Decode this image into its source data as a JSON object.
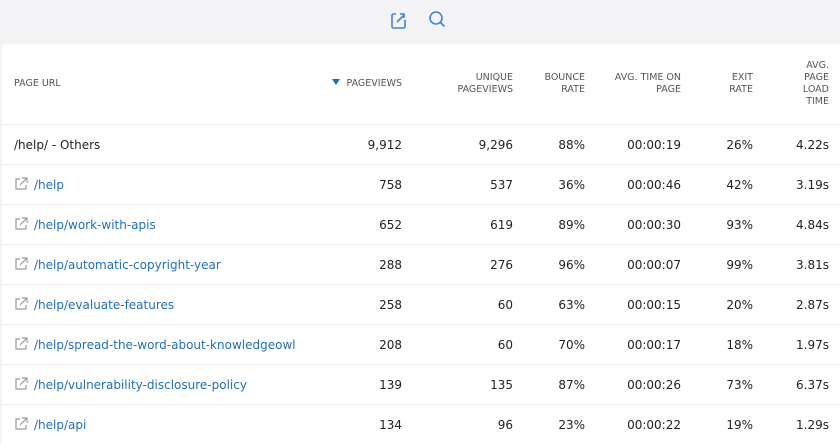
{
  "table": {
    "headers": [
      "PAGE URL",
      "PAGEVIEWS",
      "UNIQUE PAGEVIEWS",
      "BOUNCE RATE",
      "AVG. TIME ON PAGE",
      "EXIT RATE",
      "AVG. PAGE LOAD TIME"
    ],
    "rows": [
      [
        "/help/ - Others",
        "9,912",
        "9,296",
        "88%",
        "00:00:19",
        "26%",
        "4.22s"
      ],
      [
        "/help",
        "758",
        "537",
        "36%",
        "00:00:46",
        "42%",
        "3.19s"
      ],
      [
        "/help/work-with-apis",
        "652",
        "619",
        "89%",
        "00:00:30",
        "93%",
        "4.84s"
      ],
      [
        "/help/automatic-copyright-year",
        "288",
        "276",
        "96%",
        "00:00:07",
        "99%",
        "3.81s"
      ],
      [
        "/help/evaluate-features",
        "258",
        "60",
        "63%",
        "00:00:15",
        "20%",
        "2.87s"
      ],
      [
        "/help/spread-the-word-about-knowledgeowl",
        "208",
        "60",
        "70%",
        "00:00:17",
        "18%",
        "1.97s"
      ],
      [
        "/help/vulnerability-disclosure-policy",
        "139",
        "135",
        "87%",
        "00:00:26",
        "73%",
        "6.37s"
      ],
      [
        "/help/api",
        "134",
        "96",
        "23%",
        "00:00:22",
        "19%",
        "1.29s"
      ]
    ]
  }
}
